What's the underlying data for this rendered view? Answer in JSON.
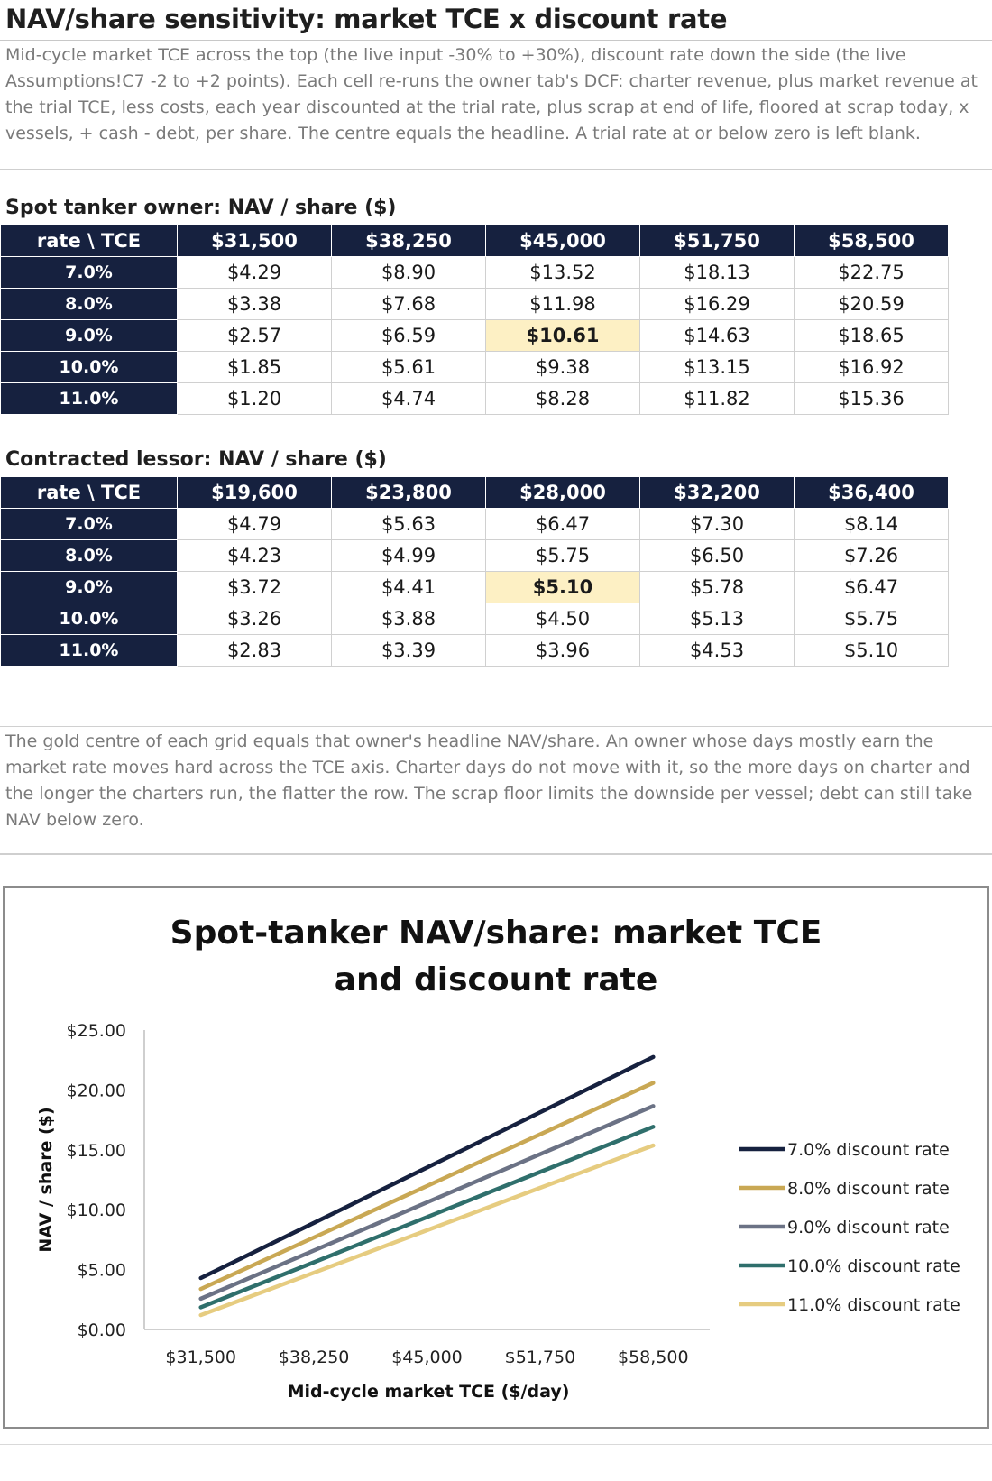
{
  "title": "NAV/share sensitivity: market TCE x discount rate",
  "intro": "Mid-cycle market TCE across the top (the live input -30% to +30%), discount rate down the side (the live Assumptions!C7 -2 to +2 points). Each cell re-runs the owner tab's DCF: charter revenue, plus market revenue at the trial TCE, less costs, each year discounted at the trial rate, plus scrap at end of life, floored at scrap today, x vessels, + cash - debt, per share. The centre equals the headline. A trial rate at or below zero is left blank.",
  "tables": [
    {
      "title": "Spot tanker owner: NAV / share ($)",
      "corner": "rate \\ TCE",
      "columns": [
        "$31,500",
        "$38,250",
        "$45,000",
        "$51,750",
        "$58,500"
      ],
      "rows": [
        {
          "rate": "7.0%",
          "cells": [
            "$4.29",
            "$8.90",
            "$13.52",
            "$18.13",
            "$22.75"
          ]
        },
        {
          "rate": "8.0%",
          "cells": [
            "$3.38",
            "$7.68",
            "$11.98",
            "$16.29",
            "$20.59"
          ]
        },
        {
          "rate": "9.0%",
          "cells": [
            "$2.57",
            "$6.59",
            "$10.61",
            "$14.63",
            "$18.65"
          ]
        },
        {
          "rate": "10.0%",
          "cells": [
            "$1.85",
            "$5.61",
            "$9.38",
            "$13.15",
            "$16.92"
          ]
        },
        {
          "rate": "11.0%",
          "cells": [
            "$1.20",
            "$4.74",
            "$8.28",
            "$11.82",
            "$15.36"
          ]
        }
      ]
    },
    {
      "title": "Contracted lessor: NAV / share ($)",
      "corner": "rate \\ TCE",
      "columns": [
        "$19,600",
        "$23,800",
        "$28,000",
        "$32,200",
        "$36,400"
      ],
      "rows": [
        {
          "rate": "7.0%",
          "cells": [
            "$4.79",
            "$5.63",
            "$6.47",
            "$7.30",
            "$8.14"
          ]
        },
        {
          "rate": "8.0%",
          "cells": [
            "$4.23",
            "$4.99",
            "$5.75",
            "$6.50",
            "$7.26"
          ]
        },
        {
          "rate": "9.0%",
          "cells": [
            "$3.72",
            "$4.41",
            "$5.10",
            "$5.78",
            "$6.47"
          ]
        },
        {
          "rate": "10.0%",
          "cells": [
            "$3.26",
            "$3.88",
            "$4.50",
            "$5.13",
            "$5.75"
          ]
        },
        {
          "rate": "11.0%",
          "cells": [
            "$2.83",
            "$3.39",
            "$3.96",
            "$4.53",
            "$5.10"
          ]
        }
      ]
    }
  ],
  "note": "The gold centre of each grid equals that owner's headline NAV/share. An owner whose days mostly earn the market rate moves hard across the TCE axis. Charter days do not move with it, so the more days on charter and the longer the charters run, the flatter the row. The scrap floor limits the downside per vessel; debt can still take NAV below zero.",
  "chart_data": {
    "type": "line",
    "title": "Spot-tanker NAV/share: market TCE and discount rate",
    "xlabel": "Mid-cycle  market TCE ($/day)",
    "ylabel": "NAV / share ($)",
    "categories": [
      "$31,500",
      "$38,250",
      "$45,000",
      "$51,750",
      "$58,500"
    ],
    "ylim": [
      0,
      25
    ],
    "yticks": [
      "$0.00",
      "$5.00",
      "$10.00",
      "$15.00",
      "$20.00",
      "$25.00"
    ],
    "ytick_values": [
      0,
      5,
      10,
      15,
      20,
      25
    ],
    "legend": "right",
    "series": [
      {
        "name": "7.0% discount rate",
        "color": "#16213f",
        "values": [
          4.29,
          8.9,
          13.52,
          18.13,
          22.75
        ]
      },
      {
        "name": "8.0% discount rate",
        "color": "#c9a854",
        "values": [
          3.38,
          7.68,
          11.98,
          16.29,
          20.59
        ]
      },
      {
        "name": "9.0% discount rate",
        "color": "#6b7285",
        "values": [
          2.57,
          6.59,
          10.61,
          14.63,
          18.65
        ]
      },
      {
        "name": "10.0% discount rate",
        "color": "#2f6f6c",
        "values": [
          1.85,
          5.61,
          9.38,
          13.15,
          16.92
        ]
      },
      {
        "name": "11.0% discount rate",
        "color": "#e6cc80",
        "values": [
          1.2,
          4.74,
          8.28,
          11.82,
          15.36
        ]
      }
    ]
  }
}
